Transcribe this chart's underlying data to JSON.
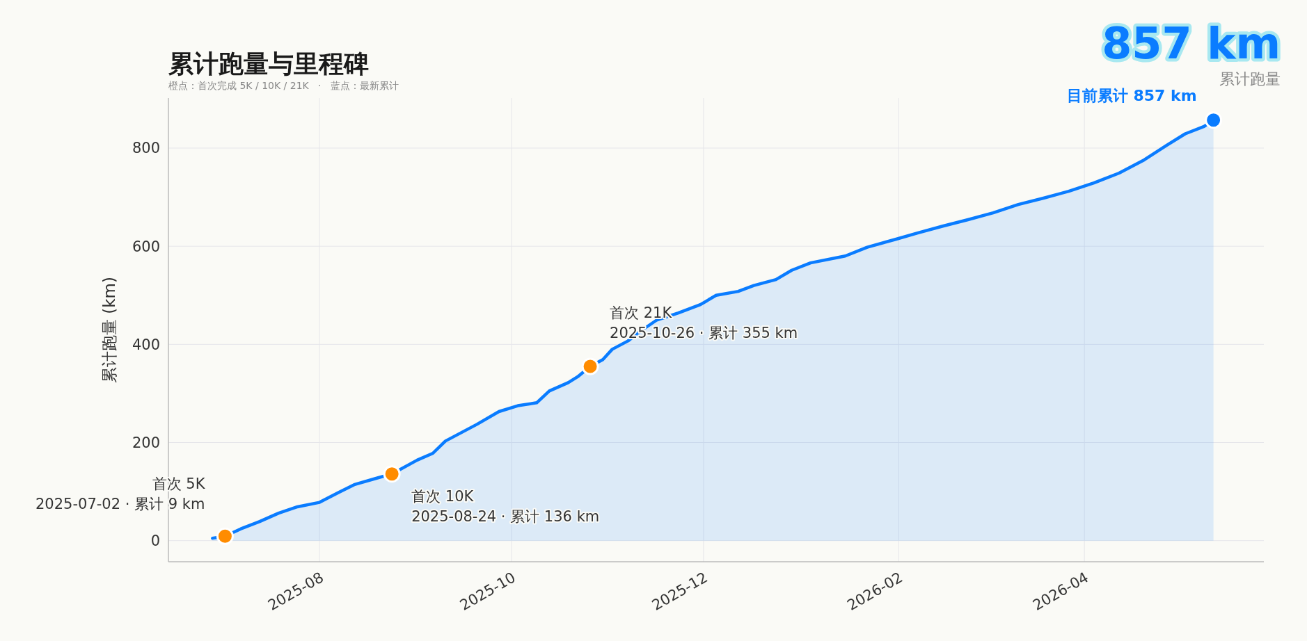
{
  "chart_data": {
    "type": "area",
    "title": "累计跑量与里程碑",
    "subtitle": "橙点：首次完成 5K / 10K / 21K   ·   蓝点：最新累计",
    "ylabel": "累计跑量 (km)",
    "xlim": [
      "2025-06-14",
      "2026-05-28"
    ],
    "xticks": [
      "2025-08",
      "2025-10",
      "2025-12",
      "2026-02",
      "2026-04"
    ],
    "ylim": [
      -43,
      902
    ],
    "yticks": [
      0,
      200,
      400,
      600,
      800
    ],
    "grid": true,
    "series": [
      {
        "color": "#0a7cff",
        "x": [
          "2025-06-28",
          "2025-07-02",
          "2025-07-07",
          "2025-07-13",
          "2025-07-19",
          "2025-07-25",
          "2025-08-01",
          "2025-08-07",
          "2025-08-12",
          "2025-08-19",
          "2025-08-24",
          "2025-09-01",
          "2025-09-06",
          "2025-09-10",
          "2025-09-15",
          "2025-09-20",
          "2025-09-27",
          "2025-10-03",
          "2025-10-09",
          "2025-10-13",
          "2025-10-19",
          "2025-10-22",
          "2025-10-26",
          "2025-10-30",
          "2025-11-02",
          "2025-11-07",
          "2025-11-11",
          "2025-11-16",
          "2025-11-23",
          "2025-11-30",
          "2025-12-05",
          "2025-12-12",
          "2025-12-17",
          "2025-12-24",
          "2025-12-29",
          "2026-01-04",
          "2026-01-15",
          "2026-01-22",
          "2026-01-31",
          "2026-02-07",
          "2026-02-15",
          "2026-02-23",
          "2026-03-03",
          "2026-03-11",
          "2026-03-19",
          "2026-03-27",
          "2026-04-04",
          "2026-04-12",
          "2026-04-20",
          "2026-04-27",
          "2026-05-03",
          "2026-05-09",
          "2026-05-12"
        ],
        "values": [
          5,
          9,
          24,
          39,
          56,
          69,
          78,
          98,
          114,
          127,
          136,
          164,
          178,
          203,
          220,
          237,
          263,
          275,
          281,
          305,
          322,
          334,
          355,
          369,
          390,
          407,
          427,
          449,
          464,
          481,
          500,
          508,
          520,
          532,
          551,
          566,
          580,
          598,
          614,
          627,
          641,
          654,
          668,
          685,
          698,
          712,
          729,
          749,
          776,
          805,
          829,
          844,
          857
        ]
      },
      {
        "type": "scatter",
        "marker": "circle",
        "color": "#ff8c00",
        "x": [
          "2025-07-02",
          "2025-08-24",
          "2025-10-26"
        ],
        "values": [
          9,
          136,
          355
        ]
      },
      {
        "type": "scatter",
        "marker": "circle",
        "color": "#0a7cff",
        "x": [
          "2026-05-12"
        ],
        "values": [
          857
        ]
      }
    ],
    "annotations": [
      "857 km",
      "累计跑量",
      {
        "text": "首次 5K\n2025-07-02 · 累计 9 km",
        "x": "2025-07-02",
        "y": 9
      },
      {
        "text": "首次 10K\n2025-08-24 · 累计 136 km",
        "x": "2025-08-24",
        "y": 136
      },
      {
        "text": "首次 21K\n2025-10-26 · 累计 355 km",
        "x": "2025-10-26",
        "y": 355
      },
      {
        "text": "目前累计 857 km",
        "x": "2026-05-12",
        "y": 857
      }
    ]
  }
}
